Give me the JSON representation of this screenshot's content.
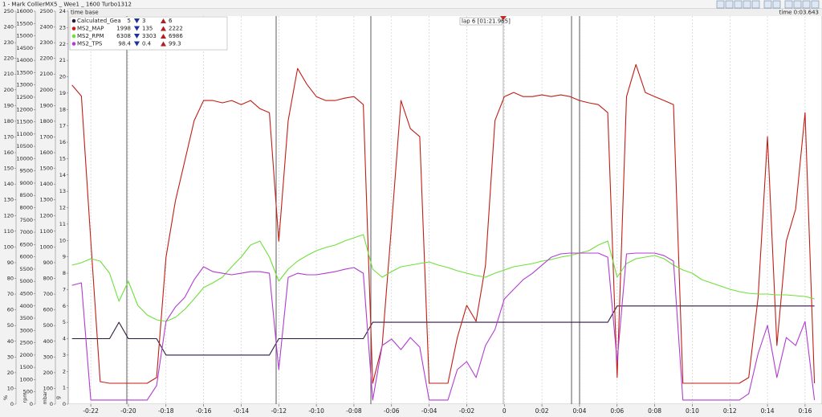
{
  "window_title": "1 - Mark CollierMX5 _ Wee1 _ 1600 Turbo1312",
  "header": {
    "left": "time base",
    "right": "time 0:03.643"
  },
  "lap_label": "lap 6 [01:21.965]",
  "chart_data": {
    "type": "line",
    "x": [
      -23,
      -22.5,
      -22,
      -21.5,
      -21,
      -20.5,
      -20,
      -19.5,
      -19,
      -18.5,
      -18,
      -17.5,
      -17,
      -16.5,
      -16,
      -15.5,
      -15,
      -14.5,
      -14,
      -13.5,
      -13,
      -12.5,
      -12,
      -11.5,
      -11,
      -10.5,
      -10,
      -9.5,
      -9,
      -8.5,
      -8,
      -7.5,
      -7,
      -6.5,
      -6,
      -5.5,
      -5,
      -4.5,
      -4,
      -3.5,
      -3,
      -2.5,
      -2,
      -1.5,
      -1,
      -0.5,
      0,
      0.5,
      1,
      1.5,
      2,
      2.5,
      3,
      3.5,
      4,
      4.5,
      5,
      5.5,
      6,
      6.5,
      7,
      7.5,
      8,
      8.5,
      9,
      9.5,
      10,
      10.5,
      11,
      11.5,
      12,
      12.5,
      13,
      13.5,
      14,
      14.5,
      15,
      15.5,
      16,
      16.5
    ],
    "xlim": [
      -23.2,
      16.9
    ],
    "xticks": [
      {
        "value": -22,
        "label": "-0:22"
      },
      {
        "value": -20,
        "label": "-0:20"
      },
      {
        "value": -18,
        "label": "-0:18"
      },
      {
        "value": -16,
        "label": "-0:16"
      },
      {
        "value": -14,
        "label": "-0:14"
      },
      {
        "value": -12,
        "label": "-0:12"
      },
      {
        "value": -10,
        "label": "-0:10"
      },
      {
        "value": -8,
        "label": "-0:08"
      },
      {
        "value": -6,
        "label": "-0:06"
      },
      {
        "value": -4,
        "label": "-0:04"
      },
      {
        "value": -2,
        "label": "-0:02"
      },
      0,
      {
        "value": 2,
        "label": "0:02"
      },
      {
        "value": 4,
        "label": "0:04"
      },
      {
        "value": 6,
        "label": "0:06"
      },
      {
        "value": 8,
        "label": "0:08"
      },
      {
        "value": 10,
        "label": "0:10"
      },
      {
        "value": 12,
        "label": "0:12"
      },
      {
        "value": 14,
        "label": "0:14"
      },
      {
        "value": 16,
        "label": "0:16"
      }
    ],
    "grid": true,
    "axes": [
      {
        "unit": "%",
        "lim": [
          0,
          250
        ],
        "ticks": [
          0,
          10,
          20,
          30,
          40,
          50,
          60,
          70,
          80,
          90,
          100,
          110,
          120,
          130,
          140,
          150,
          160,
          170,
          180,
          190,
          200,
          210,
          220,
          230,
          240,
          250
        ]
      },
      {
        "unit": "rpm",
        "lim": [
          0,
          16000
        ],
        "ticks": [
          0,
          500,
          1000,
          1500,
          2000,
          2500,
          3000,
          3500,
          4000,
          4500,
          5000,
          5500,
          6000,
          6500,
          7000,
          7500,
          8000,
          8500,
          9000,
          9500,
          10000,
          10500,
          11000,
          11500,
          12000,
          12500,
          13000,
          13500,
          14000,
          14500,
          15000,
          15500,
          16000
        ]
      },
      {
        "unit": "mbar",
        "lim": [
          0,
          2500
        ],
        "ticks": [
          0,
          100,
          200,
          300,
          400,
          500,
          600,
          700,
          800,
          900,
          1000,
          1100,
          1200,
          1300,
          1400,
          1500,
          1600,
          1700,
          1800,
          1900,
          2000,
          2100,
          2200,
          2300,
          2400,
          2500
        ]
      },
      {
        "unit": "g",
        "lim": [
          0,
          24
        ],
        "ticks": [
          0,
          1,
          2,
          3,
          4,
          5,
          6,
          7,
          8,
          9,
          10,
          11,
          12,
          13,
          14,
          15,
          16,
          17,
          18,
          19,
          20,
          21,
          22,
          23,
          24
        ]
      }
    ],
    "series": [
      {
        "name": "Calculated_Gea",
        "color": "#2e1a40",
        "axis": 3,
        "cursor": 5,
        "min": 3,
        "max": 6,
        "values": [
          4,
          4,
          4,
          4,
          4,
          5,
          4,
          4,
          4,
          4,
          3,
          3,
          3,
          3,
          3,
          3,
          3,
          3,
          3,
          3,
          3,
          3,
          4,
          4,
          4,
          4,
          4,
          4,
          4,
          4,
          4,
          4,
          5,
          5,
          5,
          5,
          5,
          5,
          5,
          5,
          5,
          5,
          5,
          5,
          5,
          5,
          5,
          5,
          5,
          5,
          5,
          5,
          5,
          5,
          5,
          5,
          5,
          5,
          6,
          6,
          6,
          6,
          6,
          6,
          6,
          6,
          6,
          6,
          6,
          6,
          6,
          6,
          6,
          6,
          6,
          6,
          6,
          6,
          6,
          6
        ]
      },
      {
        "name": "MS2_MAP",
        "color": "#c01e16",
        "axis": 2,
        "cursor": 1998,
        "min": 135,
        "max": 2222,
        "values": [
          2030,
          1960,
          1040,
          143,
          133,
          133,
          133,
          133,
          133,
          169,
          935,
          1293,
          1548,
          1804,
          1932,
          1932,
          1917,
          1932,
          1906,
          1932,
          1880,
          1855,
          1037,
          1804,
          2136,
          2034,
          1957,
          1932,
          1932,
          1947,
          1957,
          1906,
          133,
          373,
          1140,
          1932,
          1753,
          1702,
          133,
          133,
          133,
          424,
          629,
          527,
          884,
          1804,
          1957,
          1983,
          1957,
          1957,
          1968,
          1957,
          1968,
          1957,
          1932,
          1917,
          1906,
          1855,
          169,
          1957,
          2161,
          1983,
          1957,
          1932,
          1906,
          133,
          133,
          133,
          133,
          133,
          133,
          133,
          169,
          680,
          1702,
          373,
          1037,
          1242,
          1855,
          133
        ]
      },
      {
        "name": "MS2_RPM",
        "color": "#6ee03a",
        "axis": 1,
        "cursor": 6308,
        "min": 3303,
        "max": 6986,
        "values": [
          5660,
          5759,
          5922,
          5824,
          5333,
          4188,
          5006,
          4025,
          3632,
          3436,
          3370,
          3534,
          3861,
          4286,
          4744,
          4941,
          5170,
          5595,
          5988,
          6479,
          6643,
          5988,
          5006,
          5497,
          5824,
          6053,
          6250,
          6380,
          6479,
          6643,
          6773,
          6904,
          5497,
          5170,
          5399,
          5595,
          5661,
          5726,
          5792,
          5661,
          5562,
          5432,
          5333,
          5235,
          5170,
          5333,
          5464,
          5595,
          5661,
          5726,
          5824,
          5890,
          5988,
          6053,
          6151,
          6250,
          6479,
          6643,
          5170,
          5726,
          5922,
          5988,
          6053,
          5922,
          5661,
          5464,
          5333,
          5072,
          4941,
          4810,
          4679,
          4581,
          4515,
          4482,
          4482,
          4450,
          4450,
          4417,
          4384,
          4286
        ]
      },
      {
        "name": "MS2_TPS",
        "color": "#b03cd0",
        "axis": 0,
        "cursor": 98.4,
        "min": 0.4,
        "max": 99.3,
        "values": [
          75.6,
          77.2,
          2.6,
          2.6,
          2.6,
          2.6,
          2.6,
          2.6,
          2.6,
          11.8,
          52.6,
          61.8,
          68,
          79.2,
          87.4,
          84.3,
          83.3,
          82.3,
          83.3,
          84.3,
          84.3,
          83.3,
          22,
          80.7,
          83.3,
          82.3,
          82.3,
          83.3,
          84.3,
          85.8,
          86.9,
          83.3,
          2.6,
          37.3,
          41.4,
          34.7,
          42.4,
          36.3,
          2.6,
          2.6,
          2.6,
          22,
          27.1,
          16.9,
          37.3,
          47.5,
          66.9,
          73.1,
          79.2,
          83.3,
          88.4,
          93.5,
          95.6,
          96.1,
          96.1,
          96.1,
          96.1,
          93.5,
          27.1,
          95.6,
          96.1,
          96.1,
          96.1,
          94.5,
          91,
          2.6,
          2.6,
          2.6,
          2.6,
          2.6,
          2.6,
          2.6,
          6.6,
          32.2,
          50.1,
          16.9,
          42.4,
          37.3,
          52.6,
          2.6
        ]
      }
    ]
  }
}
